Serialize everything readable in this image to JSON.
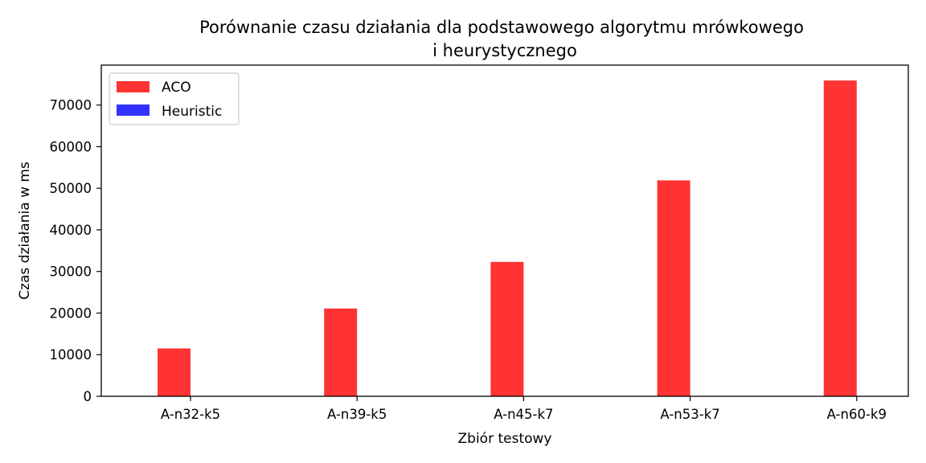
{
  "chart_data": {
    "type": "bar",
    "title_lines": [
      "Porównanie czasu działania dla podstawowego algorytmu mrówkowego",
      "i heurystycznego"
    ],
    "xlabel": "Zbiór testowy",
    "ylabel": "Czas działania w ms",
    "categories": [
      "A-n32-k5",
      "A-n39-k5",
      "A-n45-k7",
      "A-n53-k7",
      "A-n60-k9"
    ],
    "series": [
      {
        "name": "ACO",
        "color": "#ff3333",
        "values": [
          11500,
          21100,
          32300,
          51900,
          75900
        ]
      },
      {
        "name": "Heuristic",
        "color": "#3333ff",
        "values": [
          0,
          0,
          0,
          0,
          0
        ]
      }
    ],
    "ylim": [
      0,
      79600
    ],
    "yticks": [
      0,
      10000,
      20000,
      30000,
      40000,
      50000,
      60000,
      70000
    ],
    "ytick_labels": [
      "0",
      "10000",
      "20000",
      "30000",
      "40000",
      "50000",
      "60000",
      "70000"
    ],
    "grid": false,
    "legend_position": "top-left"
  }
}
